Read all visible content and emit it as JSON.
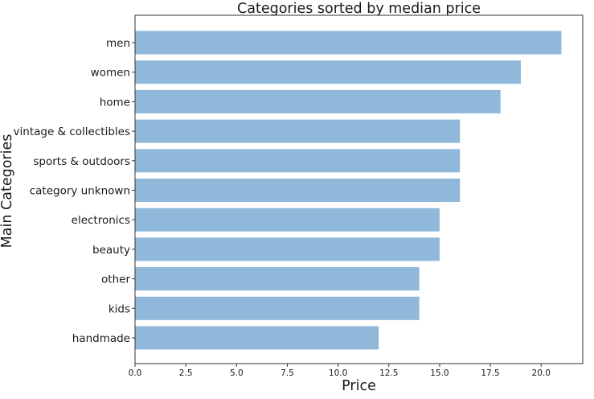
{
  "chart_data": {
    "type": "bar",
    "orientation": "horizontal",
    "title": "Categories sorted by median price",
    "xlabel": "Price",
    "ylabel": "Main Categories",
    "categories": [
      "men",
      "women",
      "home",
      "vintage & collectibles",
      "sports & outdoors",
      "category unknown",
      "electronics",
      "beauty",
      "other",
      "kids",
      "handmade"
    ],
    "values": [
      21,
      19,
      18,
      16,
      16,
      16,
      15,
      15,
      14,
      14,
      12
    ],
    "xlim": [
      0,
      22.05
    ],
    "xticks": [
      "0.0",
      "2.5",
      "5.0",
      "7.5",
      "10.0",
      "12.5",
      "15.0",
      "17.5",
      "20.0"
    ],
    "bar_color": "#8fb8da",
    "grid": false
  }
}
